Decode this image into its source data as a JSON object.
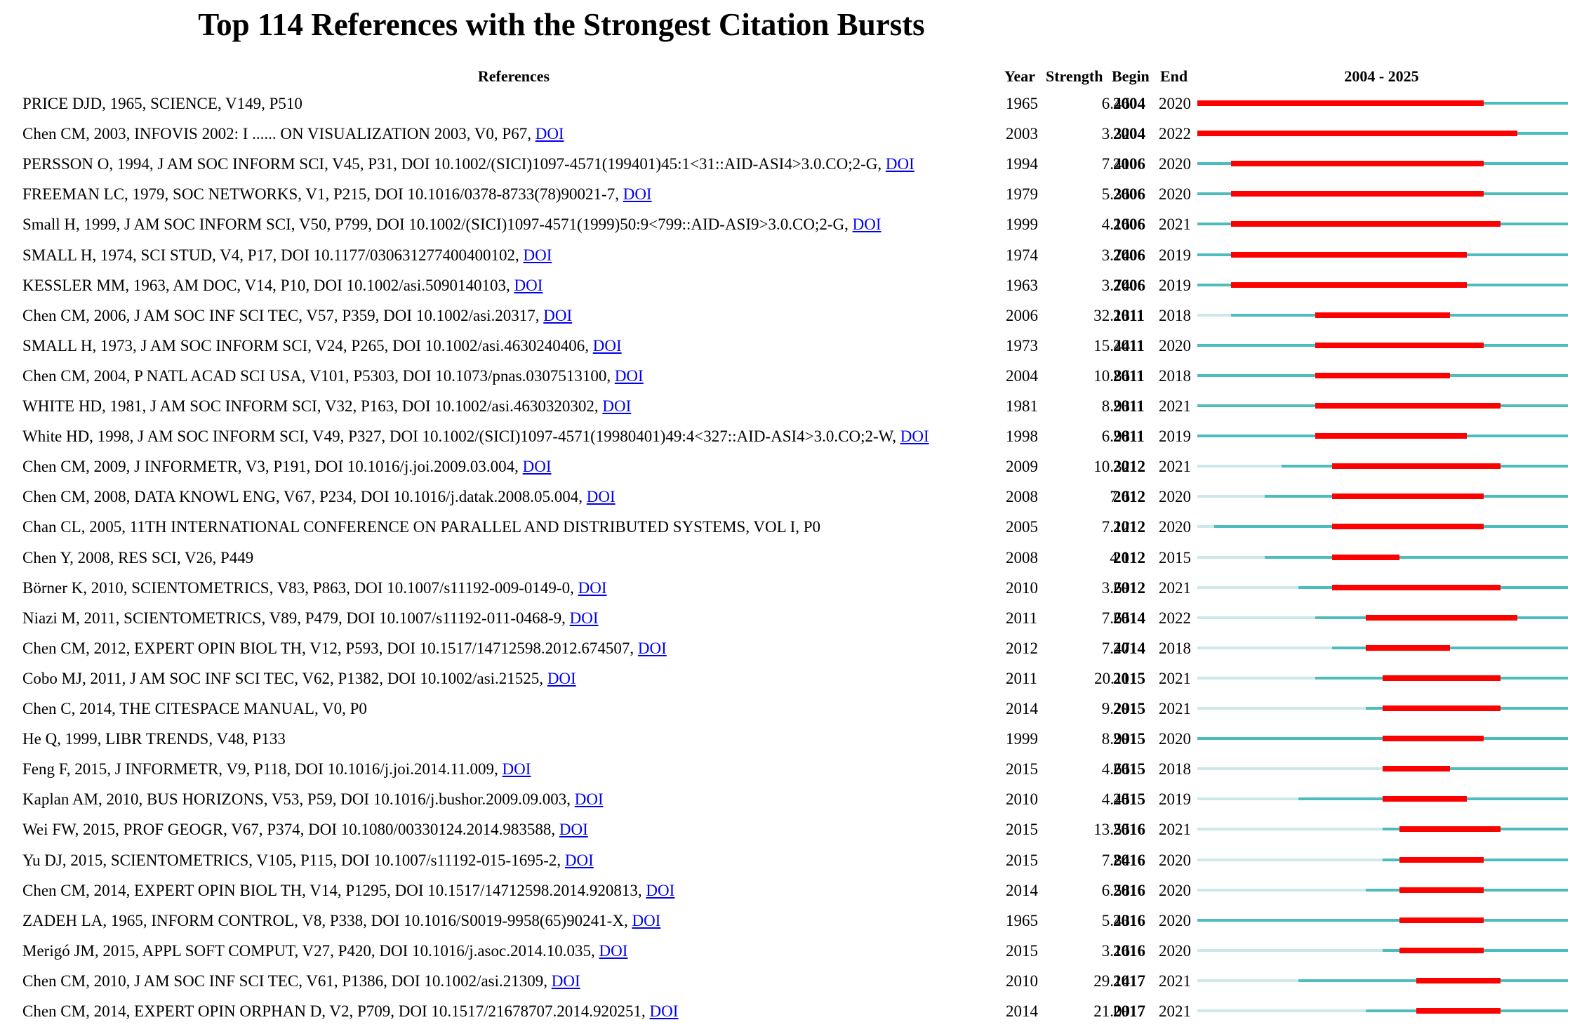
{
  "title": "Top 114 References with the Strongest Citation Bursts",
  "headers": {
    "references": "References",
    "year": "Year",
    "strength": "Strength",
    "begin": "Begin",
    "end": "End",
    "range": "2004 - 2025"
  },
  "colors": {
    "burst": "#ff0000",
    "active": "#4cbcbc",
    "before_publication": "#cde8ea"
  },
  "chart_data": {
    "type": "table",
    "title": "Top 114 References with the Strongest Citation Bursts",
    "timeline_range": [
      2004,
      2025
    ],
    "columns": [
      "References",
      "Year",
      "Strength",
      "Begin",
      "End"
    ],
    "rows": [
      {
        "ref": "PRICE DJD, 1965, SCIENCE, V149, P510",
        "link": "",
        "year": 1965,
        "strength": "6.46",
        "begin": 2004,
        "end": 2020
      },
      {
        "ref": "Chen CM, 2003, INFOVIS 2002: I ...... ON VISUALIZATION 2003, V0, P67, ",
        "link": "DOI",
        "year": 2003,
        "strength": "3.32",
        "begin": 2004,
        "end": 2022
      },
      {
        "ref": "PERSSON O, 1994, J AM SOC INFORM SCI, V45, P31, DOI 10.1002/(SICI)1097-4571(199401)45:1<31::AID-ASI4>3.0.CO;2-G, ",
        "link": "DOI",
        "year": 1994,
        "strength": "7.41",
        "begin": 2006,
        "end": 2020
      },
      {
        "ref": "FREEMAN LC, 1979, SOC NETWORKS, V1, P215, DOI 10.1016/0378-8733(78)90021-7, ",
        "link": "DOI",
        "year": 1979,
        "strength": "5.36",
        "begin": 2006,
        "end": 2020
      },
      {
        "ref": "Small H, 1999, J AM SOC INFORM SCI, V50, P799, DOI 10.1002/(SICI)1097-4571(1999)50:9<799::AID-ASI9>3.0.CO;2-G, ",
        "link": "DOI",
        "year": 1999,
        "strength": "4.16",
        "begin": 2006,
        "end": 2021
      },
      {
        "ref": "SMALL H, 1974, SCI STUD, V4, P17, DOI 10.1177/030631277400400102, ",
        "link": "DOI",
        "year": 1974,
        "strength": "3.74",
        "begin": 2006,
        "end": 2019
      },
      {
        "ref": "KESSLER MM, 1963, AM DOC, V14, P10, DOI 10.1002/asi.5090140103, ",
        "link": "DOI",
        "year": 1963,
        "strength": "3.74",
        "begin": 2006,
        "end": 2019
      },
      {
        "ref": "Chen CM, 2006, J AM SOC INF SCI TEC, V57, P359, DOI 10.1002/asi.20317, ",
        "link": "DOI",
        "year": 2006,
        "strength": "32.13",
        "begin": 2011,
        "end": 2018
      },
      {
        "ref": "SMALL H, 1973, J AM SOC INFORM SCI, V24, P265, DOI 10.1002/asi.4630240406, ",
        "link": "DOI",
        "year": 1973,
        "strength": "15.44",
        "begin": 2011,
        "end": 2020
      },
      {
        "ref": "Chen CM, 2004, P NATL ACAD SCI USA, V101, P5303, DOI 10.1073/pnas.0307513100, ",
        "link": "DOI",
        "year": 2004,
        "strength": "10.86",
        "begin": 2011,
        "end": 2018
      },
      {
        "ref": "WHITE HD, 1981, J AM SOC INFORM SCI, V32, P163, DOI 10.1002/asi.4630320302, ",
        "link": "DOI",
        "year": 1981,
        "strength": "8.93",
        "begin": 2011,
        "end": 2021
      },
      {
        "ref": "White HD, 1998, J AM SOC INFORM SCI, V49, P327, DOI 10.1002/(SICI)1097-4571(19980401)49:4<327::AID-ASI4>3.0.CO;2-W, ",
        "link": "DOI",
        "year": 1998,
        "strength": "6.98",
        "begin": 2011,
        "end": 2019
      },
      {
        "ref": "Chen CM, 2009, J INFORMETR, V3, P191, DOI 10.1016/j.joi.2009.03.004, ",
        "link": "DOI",
        "year": 2009,
        "strength": "10.32",
        "begin": 2012,
        "end": 2021
      },
      {
        "ref": "Chen CM, 2008, DATA KNOWL ENG, V67, P234, DOI 10.1016/j.datak.2008.05.004, ",
        "link": "DOI",
        "year": 2008,
        "strength": "7.6",
        "begin": 2012,
        "end": 2020
      },
      {
        "ref": "Chan CL, 2005, 11TH INTERNATIONAL CONFERENCE ON PARALLEL AND DISTRIBUTED SYSTEMS, VOL I, P0",
        "link": "",
        "year": 2005,
        "strength": "7.12",
        "begin": 2012,
        "end": 2020
      },
      {
        "ref": "Chen Y, 2008, RES SCI, V26, P449",
        "link": "",
        "year": 2008,
        "strength": "4.1",
        "begin": 2012,
        "end": 2015
      },
      {
        "ref": "Börner K, 2010, SCIENTOMETRICS, V83, P863, DOI 10.1007/s11192-009-0149-0, ",
        "link": "DOI",
        "year": 2010,
        "strength": "3.69",
        "begin": 2012,
        "end": 2021
      },
      {
        "ref": "Niazi M, 2011, SCIENTOMETRICS, V89, P479, DOI 10.1007/s11192-011-0468-9, ",
        "link": "DOI",
        "year": 2011,
        "strength": "7.65",
        "begin": 2014,
        "end": 2022
      },
      {
        "ref": "Chen CM, 2012, EXPERT OPIN BIOL TH, V12, P593, DOI 10.1517/14712598.2012.674507, ",
        "link": "DOI",
        "year": 2012,
        "strength": "7.47",
        "begin": 2014,
        "end": 2018
      },
      {
        "ref": "Cobo MJ, 2011, J AM SOC INF SCI TEC, V62, P1382, DOI 10.1002/asi.21525, ",
        "link": "DOI",
        "year": 2011,
        "strength": "20.11",
        "begin": 2015,
        "end": 2021
      },
      {
        "ref": "Chen C, 2014, THE CITESPACE MANUAL, V0, P0",
        "link": "",
        "year": 2014,
        "strength": "9.29",
        "begin": 2015,
        "end": 2021
      },
      {
        "ref": "He Q, 1999, LIBR TRENDS, V48, P133",
        "link": "",
        "year": 1999,
        "strength": "8.99",
        "begin": 2015,
        "end": 2020
      },
      {
        "ref": "Feng F, 2015, J INFORMETR, V9, P118, DOI 10.1016/j.joi.2014.11.009, ",
        "link": "DOI",
        "year": 2015,
        "strength": "4.66",
        "begin": 2015,
        "end": 2018
      },
      {
        "ref": "Kaplan AM, 2010, BUS HORIZONS, V53, P59, DOI 10.1016/j.bushor.2009.09.003, ",
        "link": "DOI",
        "year": 2010,
        "strength": "4.45",
        "begin": 2015,
        "end": 2019
      },
      {
        "ref": "Wei FW, 2015, PROF GEOGR, V67, P374, DOI 10.1080/00330124.2014.983588, ",
        "link": "DOI",
        "year": 2015,
        "strength": "13.55",
        "begin": 2016,
        "end": 2021
      },
      {
        "ref": "Yu DJ, 2015, SCIENTOMETRICS, V105, P115, DOI 10.1007/s11192-015-1695-2, ",
        "link": "DOI",
        "year": 2015,
        "strength": "7.84",
        "begin": 2016,
        "end": 2020
      },
      {
        "ref": "Chen CM, 2014, EXPERT OPIN BIOL TH, V14, P1295, DOI 10.1517/14712598.2014.920813, ",
        "link": "DOI",
        "year": 2014,
        "strength": "6.58",
        "begin": 2016,
        "end": 2020
      },
      {
        "ref": "ZADEH LA, 1965, INFORM CONTROL, V8, P338, DOI 10.1016/S0019-9958(65)90241-X, ",
        "link": "DOI",
        "year": 1965,
        "strength": "5.43",
        "begin": 2016,
        "end": 2020
      },
      {
        "ref": "Merigó JM, 2015, APPL SOFT COMPUT, V27, P420, DOI 10.1016/j.asoc.2014.10.035, ",
        "link": "DOI",
        "year": 2015,
        "strength": "3.16",
        "begin": 2016,
        "end": 2020
      },
      {
        "ref": "Chen CM, 2010, J AM SOC INF SCI TEC, V61, P1386, DOI 10.1002/asi.21309, ",
        "link": "DOI",
        "year": 2010,
        "strength": "29.14",
        "begin": 2017,
        "end": 2021
      },
      {
        "ref": "Chen CM, 2014, EXPERT OPIN ORPHAN D, V2, P709, DOI 10.1517/21678707.2014.920251, ",
        "link": "DOI",
        "year": 2014,
        "strength": "21.09",
        "begin": 2017,
        "end": 2021
      }
    ]
  }
}
